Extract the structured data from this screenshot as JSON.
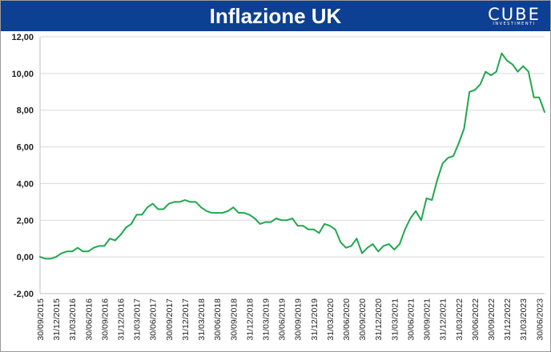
{
  "header": {
    "title": "Inflazione UK",
    "logo_word": "CUBE",
    "logo_sub": "INVESTIMENTI"
  },
  "colors": {
    "banner": "#0d3f93",
    "line": "#1fa84d",
    "grid": "#d9d9d9"
  },
  "chart_data": {
    "type": "line",
    "title": "Inflazione UK",
    "xlabel": "",
    "ylabel": "",
    "ylim": [
      -2,
      12
    ],
    "y_ticks": [
      "-2,00",
      "0,00",
      "2,00",
      "4,00",
      "6,00",
      "8,00",
      "10,00",
      "12,00"
    ],
    "x_tick_labels": [
      "30/09/2015",
      "31/12/2015",
      "31/03/2016",
      "30/06/2016",
      "30/09/2016",
      "31/12/2016",
      "31/03/2017",
      "30/06/2017",
      "30/09/2017",
      "31/12/2017",
      "31/03/2018",
      "30/06/2018",
      "30/09/2018",
      "31/12/2018",
      "31/03/2019",
      "30/06/2019",
      "30/09/2019",
      "31/12/2019",
      "31/03/2020",
      "30/06/2020",
      "30/09/2020",
      "31/12/2020",
      "31/03/2021",
      "30/06/2021",
      "30/09/2021",
      "31/12/2021",
      "31/03/2022",
      "30/06/2022",
      "30/09/2022",
      "31/12/2022",
      "31/03/2023",
      "30/06/2023"
    ],
    "grid": "horizontal",
    "frequency": "monthly",
    "start": "09/2015",
    "values": [
      0.0,
      -0.1,
      -0.1,
      0.0,
      0.2,
      0.3,
      0.3,
      0.5,
      0.3,
      0.3,
      0.5,
      0.6,
      0.6,
      1.0,
      0.9,
      1.2,
      1.6,
      1.8,
      2.3,
      2.3,
      2.7,
      2.9,
      2.6,
      2.6,
      2.9,
      3.0,
      3.0,
      3.1,
      3.0,
      3.0,
      2.7,
      2.5,
      2.4,
      2.4,
      2.4,
      2.5,
      2.7,
      2.4,
      2.4,
      2.3,
      2.1,
      1.8,
      1.9,
      1.9,
      2.1,
      2.0,
      2.0,
      2.1,
      1.7,
      1.7,
      1.5,
      1.5,
      1.3,
      1.8,
      1.7,
      1.5,
      0.8,
      0.5,
      0.6,
      1.0,
      0.2,
      0.5,
      0.7,
      0.3,
      0.6,
      0.7,
      0.4,
      0.7,
      1.5,
      2.1,
      2.5,
      2.0,
      3.2,
      3.1,
      4.2,
      5.1,
      5.4,
      5.5,
      6.2,
      7.0,
      9.0,
      9.1,
      9.4,
      10.1,
      9.9,
      10.1,
      11.1,
      10.7,
      10.5,
      10.1,
      10.4,
      10.1,
      8.7,
      8.7,
      7.9
    ]
  }
}
